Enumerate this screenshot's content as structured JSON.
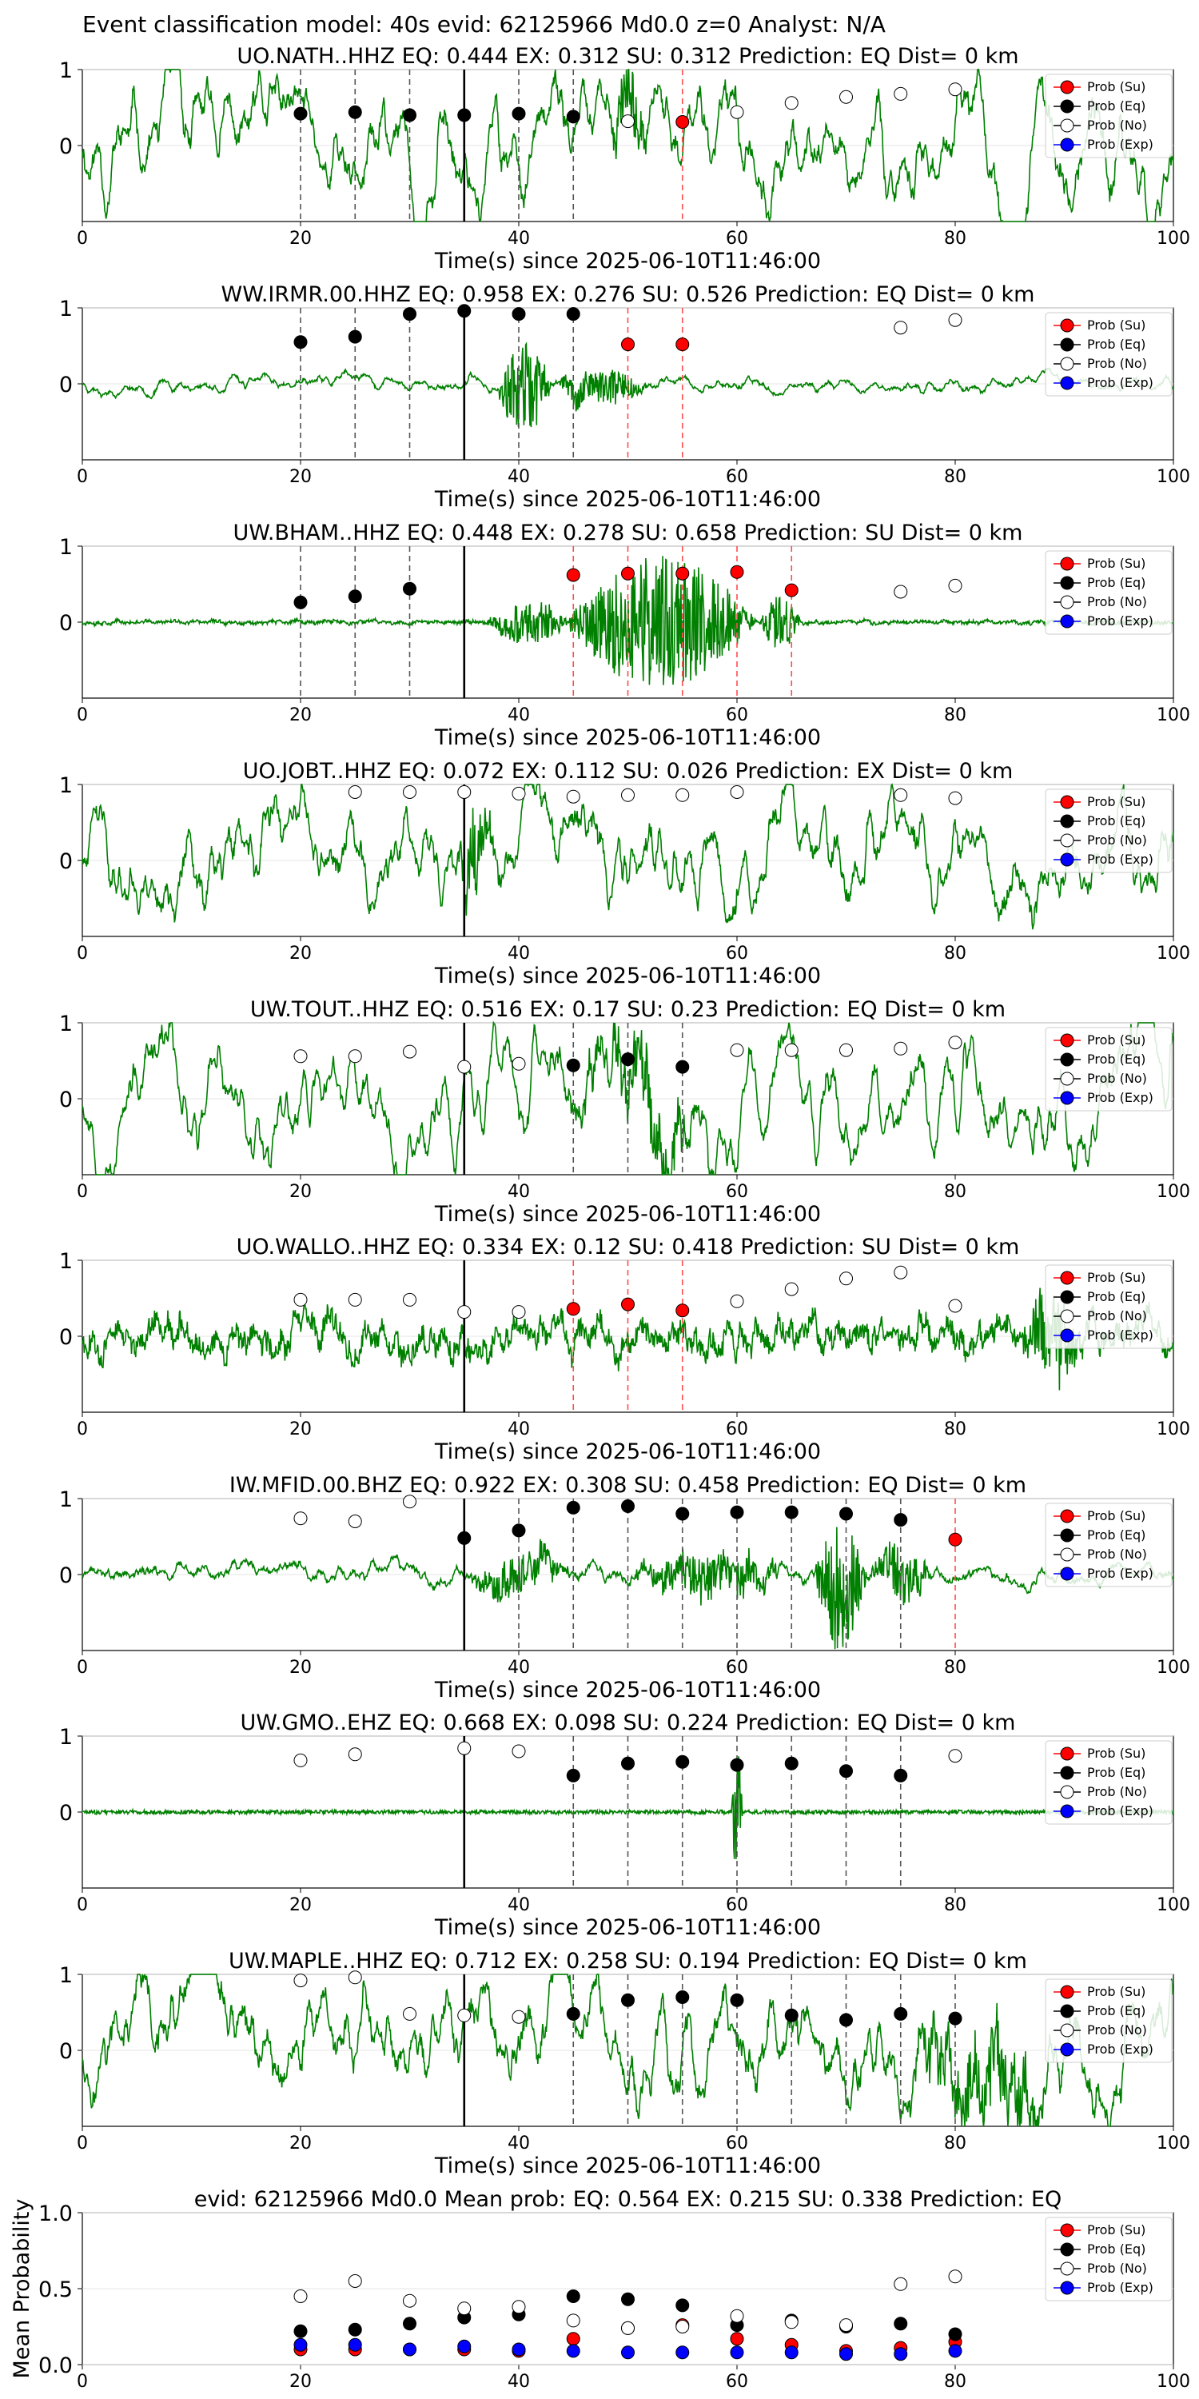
{
  "figure": {
    "suptitle": "Event classification model: 40s evid: 62125966 Md0.0 z=0 Analyst: N/A"
  },
  "legend_labels": [
    "Prob (Su)",
    "Prob (Eq)",
    "Prob (No)",
    "Prob (Exp)"
  ],
  "colors": {
    "trace": "#008000",
    "su": "#ff0000",
    "eq": "#000000",
    "no": "#ffffff",
    "exp": "#0000ff",
    "eq_line": "#555555",
    "su_line": "#ff4d4d"
  },
  "chart_data": [
    {
      "type": "line",
      "title": "UO.NATH..HHZ   EQ: 0.444  EX: 0.312  SU: 0.312   Prediction: EQ    Dist= 0 km",
      "xlabel": "Time(s) since 2025-06-10T11:46:00",
      "xlim": [
        0,
        100
      ],
      "ylim": [
        -1,
        1
      ],
      "xticks": [
        0,
        20,
        40,
        60,
        80,
        100
      ],
      "yticks": [
        0,
        1
      ],
      "pick_time": 35,
      "eq_lines": [
        20,
        25,
        30,
        40,
        45
      ],
      "su_lines": [
        55
      ],
      "trace": {
        "seed": 11,
        "amp": 0.5,
        "noise": 0.15,
        "smooth": 0.05,
        "bursts": [
          [
            48,
            52,
            0.4
          ]
        ]
      },
      "points": [
        {
          "x": 20,
          "y": 0.42,
          "c": "eq"
        },
        {
          "x": 25,
          "y": 0.44,
          "c": "eq"
        },
        {
          "x": 30,
          "y": 0.4,
          "c": "eq"
        },
        {
          "x": 35,
          "y": 0.4,
          "c": "eq"
        },
        {
          "x": 40,
          "y": 0.42,
          "c": "eq"
        },
        {
          "x": 45,
          "y": 0.38,
          "c": "eq"
        },
        {
          "x": 50,
          "y": 0.32,
          "c": "no"
        },
        {
          "x": 55,
          "y": 0.31,
          "c": "su"
        },
        {
          "x": 60,
          "y": 0.44,
          "c": "no"
        },
        {
          "x": 65,
          "y": 0.56,
          "c": "no"
        },
        {
          "x": 70,
          "y": 0.64,
          "c": "no"
        },
        {
          "x": 75,
          "y": 0.68,
          "c": "no"
        },
        {
          "x": 80,
          "y": 0.74,
          "c": "no"
        }
      ]
    },
    {
      "type": "line",
      "title": "WW.IRMR.00.HHZ   EQ: 0.958  EX: 0.276  SU: 0.526   Prediction: EQ    Dist= 0 km",
      "xlabel": "Time(s) since 2025-06-10T11:46:00",
      "xlim": [
        0,
        100
      ],
      "ylim": [
        -1,
        1
      ],
      "xticks": [
        0,
        20,
        40,
        60,
        80,
        100
      ],
      "yticks": [
        0,
        1
      ],
      "pick_time": 35,
      "eq_lines": [
        20,
        25,
        30,
        40,
        45
      ],
      "su_lines": [
        50,
        55
      ],
      "trace": {
        "seed": 23,
        "amp": 0.08,
        "noise": 0.03,
        "smooth": 0.06,
        "bursts": [
          [
            38,
            43,
            0.65
          ],
          [
            43,
            52,
            0.25
          ]
        ]
      },
      "points": [
        {
          "x": 20,
          "y": 0.55,
          "c": "eq"
        },
        {
          "x": 25,
          "y": 0.62,
          "c": "eq"
        },
        {
          "x": 30,
          "y": 0.92,
          "c": "eq"
        },
        {
          "x": 35,
          "y": 0.96,
          "c": "eq"
        },
        {
          "x": 40,
          "y": 0.92,
          "c": "eq"
        },
        {
          "x": 45,
          "y": 0.92,
          "c": "eq"
        },
        {
          "x": 50,
          "y": 0.52,
          "c": "su"
        },
        {
          "x": 55,
          "y": 0.52,
          "c": "su"
        },
        {
          "x": 75,
          "y": 0.74,
          "c": "no"
        },
        {
          "x": 80,
          "y": 0.84,
          "c": "no"
        }
      ]
    },
    {
      "type": "line",
      "title": "UW.BHAM..HHZ   EQ: 0.448  EX: 0.278  SU: 0.658   Prediction: SU    Dist= 0 km",
      "xlabel": "Time(s) since 2025-06-10T11:46:00",
      "xlim": [
        0,
        100
      ],
      "ylim": [
        -1,
        1
      ],
      "xticks": [
        0,
        20,
        40,
        60,
        80,
        100
      ],
      "yticks": [
        0,
        1
      ],
      "pick_time": 35,
      "eq_lines": [
        20,
        25,
        30
      ],
      "su_lines": [
        45,
        50,
        55,
        60,
        65
      ],
      "trace": {
        "seed": 37,
        "amp": 0.05,
        "noise": 0.04,
        "smooth": 0.3,
        "bursts": [
          [
            37,
            45,
            0.3
          ],
          [
            44,
            62,
            0.9
          ],
          [
            62,
            66,
            0.35
          ]
        ]
      },
      "points": [
        {
          "x": 20,
          "y": 0.26,
          "c": "eq"
        },
        {
          "x": 25,
          "y": 0.34,
          "c": "eq"
        },
        {
          "x": 30,
          "y": 0.44,
          "c": "eq"
        },
        {
          "x": 45,
          "y": 0.62,
          "c": "su"
        },
        {
          "x": 50,
          "y": 0.64,
          "c": "su"
        },
        {
          "x": 55,
          "y": 0.64,
          "c": "su"
        },
        {
          "x": 60,
          "y": 0.66,
          "c": "su"
        },
        {
          "x": 65,
          "y": 0.42,
          "c": "su"
        },
        {
          "x": 75,
          "y": 0.4,
          "c": "no"
        },
        {
          "x": 80,
          "y": 0.48,
          "c": "no"
        }
      ]
    },
    {
      "type": "line",
      "title": "UO.JOBT..HHZ   EQ: 0.072  EX: 0.112  SU: 0.026   Prediction: EX    Dist= 0 km",
      "xlabel": "Time(s) since 2025-06-10T11:46:00",
      "xlim": [
        0,
        100
      ],
      "ylim": [
        -1,
        1
      ],
      "xticks": [
        0,
        20,
        40,
        60,
        80,
        100
      ],
      "yticks": [
        0,
        1
      ],
      "pick_time": 35,
      "eq_lines": [],
      "su_lines": [],
      "trace": {
        "seed": 41,
        "amp": 0.45,
        "noise": 0.15,
        "smooth": 0.06,
        "bursts": [
          [
            34,
            38,
            0.5
          ]
        ]
      },
      "points": [
        {
          "x": 25,
          "y": 0.9,
          "c": "no"
        },
        {
          "x": 30,
          "y": 0.9,
          "c": "no"
        },
        {
          "x": 35,
          "y": 0.9,
          "c": "no"
        },
        {
          "x": 40,
          "y": 0.88,
          "c": "no"
        },
        {
          "x": 45,
          "y": 0.84,
          "c": "no"
        },
        {
          "x": 50,
          "y": 0.86,
          "c": "no"
        },
        {
          "x": 55,
          "y": 0.86,
          "c": "no"
        },
        {
          "x": 60,
          "y": 0.9,
          "c": "no"
        },
        {
          "x": 75,
          "y": 0.86,
          "c": "no"
        },
        {
          "x": 80,
          "y": 0.82,
          "c": "no"
        }
      ]
    },
    {
      "type": "line",
      "title": "UW.TOUT..HHZ   EQ: 0.516  EX: 0.17  SU: 0.23   Prediction: EQ    Dist= 0 km",
      "xlabel": "Time(s) since 2025-06-10T11:46:00",
      "xlim": [
        0,
        100
      ],
      "ylim": [
        -1,
        1
      ],
      "xticks": [
        0,
        20,
        40,
        60,
        80,
        100
      ],
      "yticks": [
        0,
        1
      ],
      "pick_time": 35,
      "eq_lines": [
        45,
        50,
        55
      ],
      "su_lines": [],
      "trace": {
        "seed": 53,
        "amp": 0.5,
        "noise": 0.12,
        "smooth": 0.05,
        "bursts": [
          [
            44,
            58,
            0.35
          ]
        ]
      },
      "points": [
        {
          "x": 20,
          "y": 0.56,
          "c": "no"
        },
        {
          "x": 25,
          "y": 0.56,
          "c": "no"
        },
        {
          "x": 30,
          "y": 0.62,
          "c": "no"
        },
        {
          "x": 35,
          "y": 0.42,
          "c": "no"
        },
        {
          "x": 40,
          "y": 0.46,
          "c": "no"
        },
        {
          "x": 45,
          "y": 0.44,
          "c": "eq"
        },
        {
          "x": 50,
          "y": 0.52,
          "c": "eq"
        },
        {
          "x": 55,
          "y": 0.42,
          "c": "eq"
        },
        {
          "x": 60,
          "y": 0.64,
          "c": "no"
        },
        {
          "x": 65,
          "y": 0.64,
          "c": "no"
        },
        {
          "x": 70,
          "y": 0.64,
          "c": "no"
        },
        {
          "x": 75,
          "y": 0.66,
          "c": "no"
        },
        {
          "x": 80,
          "y": 0.74,
          "c": "no"
        }
      ]
    },
    {
      "type": "line",
      "title": "UO.WALLO..HHZ   EQ: 0.334  EX: 0.12  SU: 0.418   Prediction: SU    Dist= 0 km",
      "xlabel": "Time(s) since 2025-06-10T11:46:00",
      "xlim": [
        0,
        100
      ],
      "ylim": [
        -1,
        1
      ],
      "xticks": [
        0,
        20,
        40,
        60,
        80,
        100
      ],
      "yticks": [
        0,
        1
      ],
      "pick_time": 35,
      "eq_lines": [],
      "su_lines": [
        45,
        50,
        55
      ],
      "trace": {
        "seed": 67,
        "amp": 0.3,
        "noise": 0.25,
        "smooth": 0.15,
        "bursts": [
          [
            86,
            92,
            0.6
          ]
        ]
      },
      "points": [
        {
          "x": 20,
          "y": 0.48,
          "c": "no"
        },
        {
          "x": 25,
          "y": 0.48,
          "c": "no"
        },
        {
          "x": 30,
          "y": 0.48,
          "c": "no"
        },
        {
          "x": 35,
          "y": 0.32,
          "c": "no"
        },
        {
          "x": 40,
          "y": 0.32,
          "c": "no"
        },
        {
          "x": 45,
          "y": 0.36,
          "c": "su"
        },
        {
          "x": 50,
          "y": 0.42,
          "c": "su"
        },
        {
          "x": 55,
          "y": 0.34,
          "c": "su"
        },
        {
          "x": 60,
          "y": 0.46,
          "c": "no"
        },
        {
          "x": 65,
          "y": 0.62,
          "c": "no"
        },
        {
          "x": 70,
          "y": 0.76,
          "c": "no"
        },
        {
          "x": 75,
          "y": 0.84,
          "c": "no"
        },
        {
          "x": 80,
          "y": 0.4,
          "c": "no"
        }
      ]
    },
    {
      "type": "line",
      "title": "IW.MFID.00.BHZ   EQ: 0.922  EX: 0.308  SU: 0.458   Prediction: EQ    Dist= 0 km",
      "xlabel": "Time(s) since 2025-06-10T11:46:00",
      "xlim": [
        0,
        100
      ],
      "ylim": [
        -1,
        1
      ],
      "xticks": [
        0,
        20,
        40,
        60,
        80,
        100
      ],
      "yticks": [
        0,
        1
      ],
      "pick_time": 35,
      "eq_lines": [
        40,
        45,
        50,
        55,
        60,
        65,
        70,
        75
      ],
      "su_lines": [
        80
      ],
      "trace": {
        "seed": 71,
        "amp": 0.12,
        "noise": 0.05,
        "smooth": 0.08,
        "bursts": [
          [
            35,
            45,
            0.25
          ],
          [
            50,
            65,
            0.3
          ],
          [
            67,
            72,
            0.95
          ],
          [
            72,
            78,
            0.35
          ]
        ]
      },
      "points": [
        {
          "x": 20,
          "y": 0.74,
          "c": "no"
        },
        {
          "x": 25,
          "y": 0.7,
          "c": "no"
        },
        {
          "x": 30,
          "y": 0.96,
          "c": "no"
        },
        {
          "x": 35,
          "y": 0.48,
          "c": "eq"
        },
        {
          "x": 40,
          "y": 0.58,
          "c": "eq"
        },
        {
          "x": 45,
          "y": 0.88,
          "c": "eq"
        },
        {
          "x": 50,
          "y": 0.9,
          "c": "eq"
        },
        {
          "x": 55,
          "y": 0.8,
          "c": "eq"
        },
        {
          "x": 60,
          "y": 0.82,
          "c": "eq"
        },
        {
          "x": 65,
          "y": 0.82,
          "c": "eq"
        },
        {
          "x": 70,
          "y": 0.8,
          "c": "eq"
        },
        {
          "x": 75,
          "y": 0.72,
          "c": "eq"
        },
        {
          "x": 80,
          "y": 0.46,
          "c": "su"
        }
      ]
    },
    {
      "type": "line",
      "title": "UW.GMO..EHZ   EQ: 0.668  EX: 0.098  SU: 0.224   Prediction: EQ    Dist= 0 km",
      "xlabel": "Time(s) since 2025-06-10T11:46:00",
      "xlim": [
        0,
        100
      ],
      "ylim": [
        -1,
        1
      ],
      "xticks": [
        0,
        20,
        40,
        60,
        80,
        100
      ],
      "yticks": [
        0,
        1
      ],
      "pick_time": 35,
      "eq_lines": [
        45,
        50,
        55,
        60,
        65,
        70,
        75
      ],
      "su_lines": [],
      "trace": {
        "seed": 83,
        "amp": 0.02,
        "noise": 0.05,
        "smooth": 0.5,
        "bursts": [
          [
            59.5,
            60.5,
            1.0
          ]
        ]
      },
      "points": [
        {
          "x": 20,
          "y": 0.68,
          "c": "no"
        },
        {
          "x": 25,
          "y": 0.76,
          "c": "no"
        },
        {
          "x": 35,
          "y": 0.84,
          "c": "no"
        },
        {
          "x": 40,
          "y": 0.8,
          "c": "no"
        },
        {
          "x": 45,
          "y": 0.48,
          "c": "eq"
        },
        {
          "x": 50,
          "y": 0.64,
          "c": "eq"
        },
        {
          "x": 55,
          "y": 0.66,
          "c": "eq"
        },
        {
          "x": 60,
          "y": 0.62,
          "c": "eq"
        },
        {
          "x": 65,
          "y": 0.64,
          "c": "eq"
        },
        {
          "x": 70,
          "y": 0.54,
          "c": "eq"
        },
        {
          "x": 75,
          "y": 0.48,
          "c": "eq"
        },
        {
          "x": 80,
          "y": 0.74,
          "c": "no"
        }
      ]
    },
    {
      "type": "line",
      "title": "UW.MAPLE..HHZ   EQ: 0.712  EX: 0.258  SU: 0.194   Prediction: EQ    Dist= 0 km",
      "xlabel": "Time(s) since 2025-06-10T11:46:00",
      "xlim": [
        0,
        100
      ],
      "ylim": [
        -1,
        1
      ],
      "xticks": [
        0,
        20,
        40,
        60,
        80,
        100
      ],
      "yticks": [
        0,
        1
      ],
      "pick_time": 35,
      "eq_lines": [
        45,
        50,
        55,
        60,
        65,
        70,
        75,
        80
      ],
      "su_lines": [],
      "trace": {
        "seed": 97,
        "amp": 0.45,
        "noise": 0.18,
        "smooth": 0.05,
        "bursts": [
          [
            75,
            90,
            0.5
          ]
        ]
      },
      "points": [
        {
          "x": 20,
          "y": 0.92,
          "c": "no"
        },
        {
          "x": 25,
          "y": 0.96,
          "c": "no"
        },
        {
          "x": 30,
          "y": 0.48,
          "c": "no"
        },
        {
          "x": 35,
          "y": 0.46,
          "c": "no"
        },
        {
          "x": 40,
          "y": 0.44,
          "c": "no"
        },
        {
          "x": 45,
          "y": 0.48,
          "c": "eq"
        },
        {
          "x": 50,
          "y": 0.66,
          "c": "eq"
        },
        {
          "x": 55,
          "y": 0.7,
          "c": "eq"
        },
        {
          "x": 60,
          "y": 0.66,
          "c": "eq"
        },
        {
          "x": 65,
          "y": 0.46,
          "c": "eq"
        },
        {
          "x": 70,
          "y": 0.4,
          "c": "eq"
        },
        {
          "x": 75,
          "y": 0.48,
          "c": "eq"
        },
        {
          "x": 80,
          "y": 0.42,
          "c": "eq"
        }
      ]
    },
    {
      "type": "scatter",
      "title": "evid: 62125966  Md0.0    Mean prob:    EQ: 0.564  EX: 0.215  SU: 0.338   Prediction: EQ",
      "ylabel": "Mean Probability",
      "xlim": [
        0,
        100
      ],
      "ylim": [
        0,
        1
      ],
      "xticks": [
        0,
        20,
        40,
        60,
        80,
        100
      ],
      "yticks": [
        0,
        0.5,
        1
      ],
      "yticklabels": [
        "0.0",
        "0.5",
        "1.0"
      ],
      "series": [
        {
          "name": "Prob (Su)",
          "c": "su",
          "x": [
            20,
            25,
            30,
            35,
            40,
            45,
            50,
            55,
            60,
            65,
            70,
            75,
            80
          ],
          "y": [
            0.1,
            0.1,
            0.1,
            0.1,
            0.09,
            0.17,
            0.24,
            0.26,
            0.17,
            0.13,
            0.09,
            0.11,
            0.15
          ]
        },
        {
          "name": "Prob (Eq)",
          "c": "eq",
          "x": [
            20,
            25,
            30,
            35,
            40,
            45,
            50,
            55,
            60,
            65,
            70,
            75,
            80
          ],
          "y": [
            0.22,
            0.23,
            0.27,
            0.31,
            0.33,
            0.45,
            0.43,
            0.39,
            0.26,
            0.29,
            0.25,
            0.27,
            0.2
          ]
        },
        {
          "name": "Prob (No)",
          "c": "no",
          "x": [
            20,
            25,
            30,
            35,
            40,
            45,
            50,
            55,
            60,
            65,
            70,
            75,
            80
          ],
          "y": [
            0.45,
            0.55,
            0.42,
            0.37,
            0.38,
            0.29,
            0.24,
            0.25,
            0.32,
            0.28,
            0.26,
            0.53,
            0.58
          ]
        },
        {
          "name": "Prob (Exp)",
          "c": "exp",
          "x": [
            20,
            25,
            30,
            35,
            40,
            45,
            50,
            55,
            60,
            65,
            70,
            75,
            80
          ],
          "y": [
            0.13,
            0.13,
            0.1,
            0.12,
            0.1,
            0.09,
            0.08,
            0.08,
            0.08,
            0.08,
            0.07,
            0.07,
            0.09
          ]
        }
      ]
    }
  ]
}
